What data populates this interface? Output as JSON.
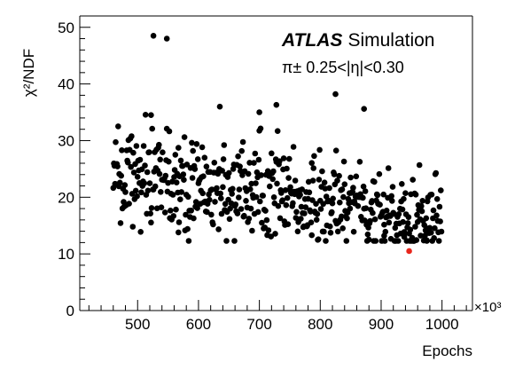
{
  "chart_data": {
    "type": "scatter",
    "ylabel": "χ²/NDF",
    "xlabel": "Epochs",
    "x_multiplier": "×10³",
    "xlim": [
      405,
      1050
    ],
    "ylim": [
      0,
      52
    ],
    "x_ticks": [
      500,
      600,
      700,
      800,
      900,
      1000
    ],
    "y_ticks": [
      0,
      10,
      20,
      30,
      40,
      50
    ],
    "grid": false,
    "annotations": {
      "experiment": "ATLAS",
      "experiment_suffix": "Simulation",
      "selection": "π± 0.25<|η|<0.30"
    },
    "marker_color": "#000000",
    "highlight_color": "#e8261c",
    "highlight_point": {
      "x": 946,
      "y": 10.5
    },
    "scatter_seed": 20240
  }
}
